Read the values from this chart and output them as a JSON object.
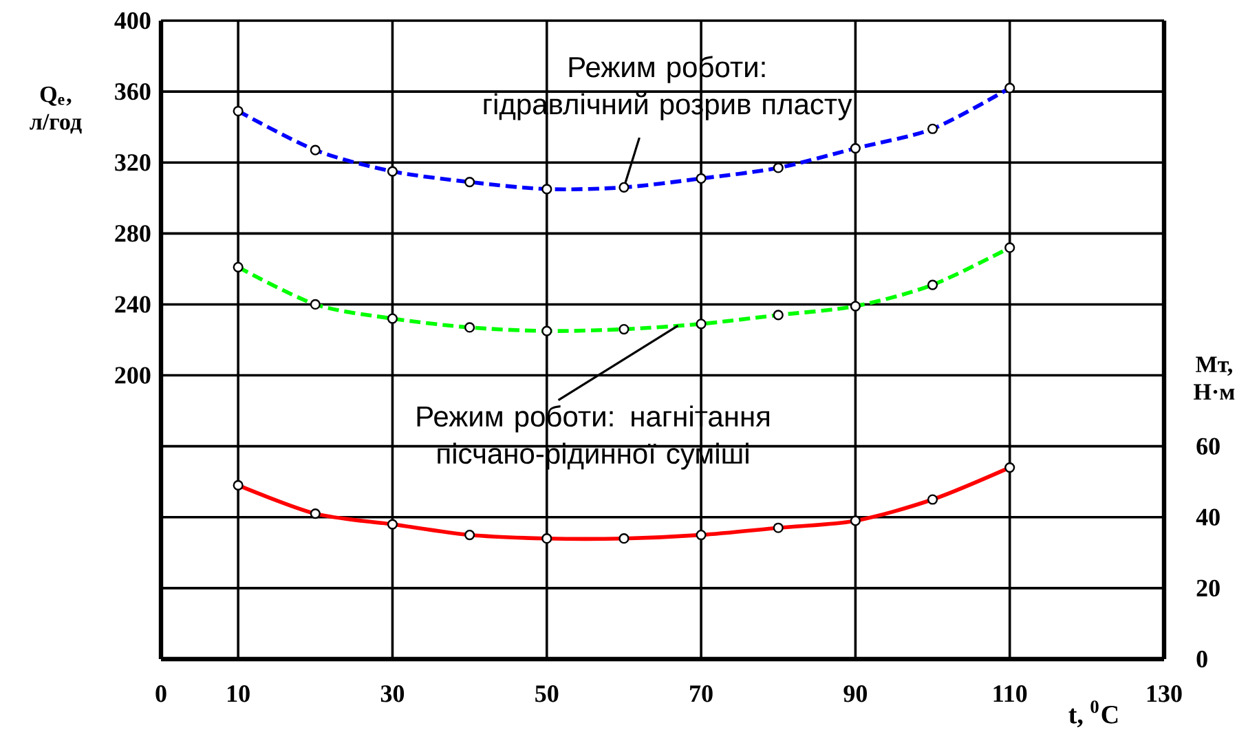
{
  "chart_data": {
    "type": "line",
    "xlabel": "t, $^{0}$C",
    "ylabel": "Q$_{e}$, л/год",
    "y2label": "Мт, Н·м",
    "x": [
      10,
      20,
      30,
      40,
      50,
      60,
      70,
      80,
      90,
      100,
      110
    ],
    "series": [
      {
        "color": "#0000ff",
        "line_style": "dashed",
        "values": [
          349,
          327,
          315,
          309,
          305,
          306,
          311,
          317,
          328,
          339,
          362
        ]
      },
      {
        "color": "#00ff00",
        "line_style": "dashed",
        "values": [
          261,
          240,
          232,
          227,
          225,
          226,
          229,
          234,
          239,
          251,
          272
        ]
      },
      {
        "color": "#ff0000",
        "line_style": "solid",
        "axis": "y2",
        "values": [
          49,
          41,
          38,
          35,
          34,
          34,
          35,
          37,
          39,
          45,
          54
        ]
      }
    ],
    "xlim": [
      0,
      130
    ],
    "xticks": [
      0,
      10,
      30,
      50,
      70,
      90,
      110,
      130
    ],
    "ylim": [
      40,
      400
    ],
    "yticks": [
      {
        "value": 80,
        "label": null
      },
      {
        "value": 120,
        "label": null
      },
      {
        "value": 160,
        "label": null
      },
      200,
      240,
      280,
      320,
      360,
      400
    ],
    "y2lim": [
      0,
      180
    ],
    "y2ticks": [
      0,
      20,
      40,
      60
    ],
    "grid": true,
    "marker": "circle",
    "annotations": [
      {
        "text": "Режим роботи: гідравлічний розрив пласту",
        "x": 60,
        "y": 306
      },
      {
        "text": "Режим роботи: нагнітання пісчано-рідинної суміші",
        "x": 67,
        "y": 228
      }
    ]
  }
}
